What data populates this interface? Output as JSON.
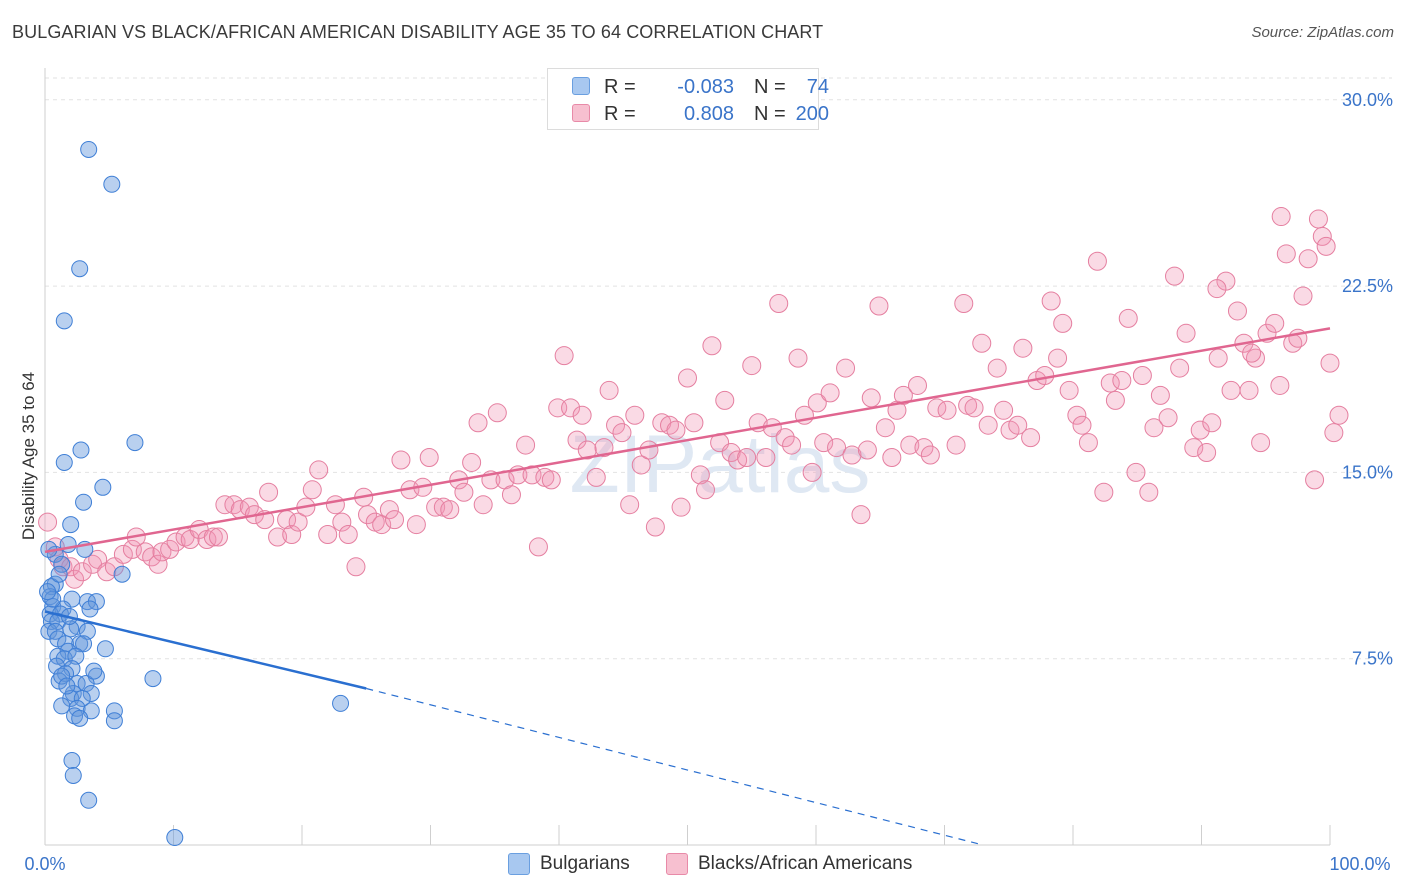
{
  "title": "BULGARIAN VS BLACK/AFRICAN AMERICAN DISABILITY AGE 35 TO 64 CORRELATION CHART",
  "source": "Source: ZipAtlas.com",
  "watermark": "ZIPatlas",
  "legend_top": [
    {
      "r_label": "R =",
      "r_value": "-0.083",
      "n_label": "N =",
      "n_value": "74",
      "color": "#a8c8f0",
      "border": "#6a9fe0"
    },
    {
      "r_label": "R =",
      "r_value": "0.808",
      "n_label": "N =",
      "n_value": "200",
      "color": "#f7c0d0",
      "border": "#e88aa8"
    }
  ],
  "legend_bottom": [
    {
      "label": "Bulgarians",
      "color": "#a8c8f0",
      "border": "#6a9fe0"
    },
    {
      "label": "Blacks/African Americans",
      "color": "#f7c0d0",
      "border": "#e88aa8"
    }
  ],
  "colors": {
    "blue_fill": "rgba(100,150,220,0.45)",
    "blue_stroke": "#3f7fd6",
    "blue_line": "#2a6fd0",
    "pink_fill": "rgba(240,150,180,0.35)",
    "pink_stroke": "#e57fa0",
    "pink_line": "#e06690",
    "tick_label": "#3a74c9",
    "grid": "#e2e2e2"
  },
  "chart_data": {
    "type": "scatter",
    "title": "BULGARIAN VS BLACK/AFRICAN AMERICAN DISABILITY AGE 35 TO 64 CORRELATION CHART",
    "xlabel": "",
    "ylabel": "Disability Age 35 to 64",
    "xlim": [
      0,
      100
    ],
    "ylim": [
      0,
      31.2
    ],
    "x_tick_labels": [
      "0.0%",
      "100.0%"
    ],
    "y_ticks": [
      7.5,
      15.0,
      22.5,
      30.0
    ],
    "y_tick_labels": [
      "7.5%",
      "15.0%",
      "22.5%",
      "30.0%"
    ],
    "grid": true,
    "legend_position": "top-center",
    "series": [
      {
        "name": "Bulgarians",
        "trend": {
          "x0": 0,
          "y0": 9.4,
          "x1": 25,
          "y1": 6.3,
          "dashed_to_x": 73,
          "dashed_to_y": 0.0
        },
        "points": [
          [
            3.4,
            28.0
          ],
          [
            5.2,
            26.6
          ],
          [
            2.7,
            23.2
          ],
          [
            1.5,
            21.1
          ],
          [
            2.8,
            15.9
          ],
          [
            1.5,
            15.4
          ],
          [
            4.5,
            14.4
          ],
          [
            3.0,
            13.8
          ],
          [
            7.0,
            16.2
          ],
          [
            2.0,
            12.9
          ],
          [
            1.8,
            12.1
          ],
          [
            3.1,
            11.9
          ],
          [
            0.8,
            11.7
          ],
          [
            1.3,
            11.3
          ],
          [
            6.0,
            10.9
          ],
          [
            0.8,
            10.5
          ],
          [
            0.5,
            10.4
          ],
          [
            0.4,
            10.0
          ],
          [
            2.1,
            9.9
          ],
          [
            3.3,
            9.8
          ],
          [
            4.0,
            9.8
          ],
          [
            0.6,
            9.6
          ],
          [
            1.4,
            9.5
          ],
          [
            3.5,
            9.5
          ],
          [
            0.4,
            9.3
          ],
          [
            1.2,
            9.3
          ],
          [
            0.5,
            9.0
          ],
          [
            1.0,
            9.0
          ],
          [
            2.5,
            8.8
          ],
          [
            0.3,
            8.6
          ],
          [
            0.8,
            8.6
          ],
          [
            2.0,
            8.7
          ],
          [
            3.3,
            8.6
          ],
          [
            1.0,
            8.3
          ],
          [
            1.6,
            8.1
          ],
          [
            2.7,
            8.1
          ],
          [
            3.0,
            8.1
          ],
          [
            4.7,
            7.9
          ],
          [
            1.8,
            7.8
          ],
          [
            1.0,
            7.6
          ],
          [
            1.5,
            7.5
          ],
          [
            2.4,
            7.6
          ],
          [
            0.9,
            7.2
          ],
          [
            2.1,
            7.1
          ],
          [
            1.6,
            6.9
          ],
          [
            4.0,
            6.8
          ],
          [
            1.1,
            6.6
          ],
          [
            2.5,
            6.5
          ],
          [
            3.2,
            6.5
          ],
          [
            2.2,
            6.1
          ],
          [
            3.6,
            6.1
          ],
          [
            2.0,
            5.9
          ],
          [
            2.9,
            5.9
          ],
          [
            1.3,
            5.6
          ],
          [
            2.5,
            5.5
          ],
          [
            3.6,
            5.4
          ],
          [
            5.4,
            5.4
          ],
          [
            2.3,
            5.2
          ],
          [
            2.7,
            5.1
          ],
          [
            5.4,
            5.0
          ],
          [
            8.4,
            6.7
          ],
          [
            23.0,
            5.7
          ],
          [
            2.1,
            3.4
          ],
          [
            2.2,
            2.8
          ],
          [
            3.4,
            1.8
          ],
          [
            10.1,
            0.3
          ],
          [
            0.3,
            11.9
          ],
          [
            1.1,
            10.9
          ],
          [
            1.9,
            9.2
          ],
          [
            0.6,
            9.9
          ],
          [
            1.3,
            6.8
          ],
          [
            0.2,
            10.2
          ],
          [
            3.8,
            7.0
          ],
          [
            1.7,
            6.4
          ]
        ]
      },
      {
        "name": "Blacks/African Americans",
        "trend": {
          "x0": 0,
          "y0": 11.8,
          "x1": 100,
          "y1": 20.8
        },
        "points": [
          [
            0.2,
            13.0
          ],
          [
            0.8,
            12.0
          ],
          [
            1.1,
            11.5
          ],
          [
            1.4,
            11.2
          ],
          [
            2.0,
            11.2
          ],
          [
            2.3,
            10.7
          ],
          [
            2.9,
            11.0
          ],
          [
            3.7,
            11.3
          ],
          [
            4.1,
            11.5
          ],
          [
            4.8,
            11.0
          ],
          [
            5.4,
            11.2
          ],
          [
            6.1,
            11.7
          ],
          [
            6.8,
            11.9
          ],
          [
            7.1,
            12.4
          ],
          [
            7.8,
            11.8
          ],
          [
            8.3,
            11.6
          ],
          [
            8.8,
            11.3
          ],
          [
            9.1,
            11.8
          ],
          [
            9.7,
            11.9
          ],
          [
            10.2,
            12.2
          ],
          [
            10.9,
            12.4
          ],
          [
            11.3,
            12.3
          ],
          [
            12.0,
            12.7
          ],
          [
            12.6,
            12.3
          ],
          [
            13.1,
            12.4
          ],
          [
            13.5,
            12.4
          ],
          [
            14.0,
            13.7
          ],
          [
            14.7,
            13.7
          ],
          [
            15.2,
            13.5
          ],
          [
            15.9,
            13.6
          ],
          [
            16.3,
            13.3
          ],
          [
            17.1,
            13.1
          ],
          [
            17.4,
            14.2
          ],
          [
            18.1,
            12.4
          ],
          [
            18.8,
            13.1
          ],
          [
            19.2,
            12.5
          ],
          [
            19.7,
            13.0
          ],
          [
            20.3,
            13.6
          ],
          [
            20.8,
            14.3
          ],
          [
            21.3,
            15.1
          ],
          [
            22.0,
            12.5
          ],
          [
            22.6,
            13.7
          ],
          [
            23.1,
            13.0
          ],
          [
            23.6,
            12.5
          ],
          [
            24.2,
            11.2
          ],
          [
            24.8,
            14.0
          ],
          [
            25.1,
            13.3
          ],
          [
            25.7,
            13.0
          ],
          [
            26.2,
            12.9
          ],
          [
            26.8,
            13.5
          ],
          [
            27.2,
            13.1
          ],
          [
            27.7,
            15.5
          ],
          [
            28.4,
            14.3
          ],
          [
            28.9,
            12.9
          ],
          [
            29.4,
            14.4
          ],
          [
            29.9,
            15.6
          ],
          [
            30.4,
            13.6
          ],
          [
            31.0,
            13.6
          ],
          [
            31.5,
            13.5
          ],
          [
            32.2,
            14.7
          ],
          [
            32.6,
            14.2
          ],
          [
            33.2,
            15.4
          ],
          [
            33.7,
            17.0
          ],
          [
            34.1,
            13.7
          ],
          [
            34.7,
            14.7
          ],
          [
            35.2,
            17.4
          ],
          [
            35.8,
            14.7
          ],
          [
            36.3,
            14.1
          ],
          [
            36.8,
            14.9
          ],
          [
            37.4,
            16.1
          ],
          [
            37.9,
            14.9
          ],
          [
            38.4,
            12.0
          ],
          [
            38.9,
            14.8
          ],
          [
            39.4,
            14.7
          ],
          [
            39.9,
            17.6
          ],
          [
            40.4,
            19.7
          ],
          [
            40.9,
            17.6
          ],
          [
            41.4,
            16.3
          ],
          [
            41.8,
            17.3
          ],
          [
            42.2,
            15.9
          ],
          [
            42.9,
            14.8
          ],
          [
            43.5,
            16.0
          ],
          [
            43.9,
            18.3
          ],
          [
            44.4,
            16.9
          ],
          [
            44.9,
            16.6
          ],
          [
            45.5,
            13.7
          ],
          [
            45.9,
            17.3
          ],
          [
            46.4,
            15.3
          ],
          [
            47.0,
            15.9
          ],
          [
            47.5,
            12.8
          ],
          [
            48.0,
            17.0
          ],
          [
            48.6,
            16.9
          ],
          [
            49.1,
            16.7
          ],
          [
            49.5,
            13.6
          ],
          [
            50.0,
            18.8
          ],
          [
            50.5,
            17.0
          ],
          [
            51.0,
            14.9
          ],
          [
            51.4,
            14.3
          ],
          [
            51.9,
            20.1
          ],
          [
            52.5,
            16.2
          ],
          [
            52.9,
            17.9
          ],
          [
            53.4,
            15.8
          ],
          [
            53.9,
            15.5
          ],
          [
            54.6,
            15.6
          ],
          [
            55.0,
            19.3
          ],
          [
            55.5,
            17.0
          ],
          [
            56.1,
            15.6
          ],
          [
            56.6,
            16.8
          ],
          [
            57.1,
            21.8
          ],
          [
            57.6,
            16.4
          ],
          [
            58.1,
            16.1
          ],
          [
            58.6,
            19.6
          ],
          [
            59.1,
            17.3
          ],
          [
            59.7,
            15.0
          ],
          [
            60.1,
            17.8
          ],
          [
            60.6,
            16.2
          ],
          [
            61.1,
            18.2
          ],
          [
            61.6,
            16.0
          ],
          [
            62.3,
            19.2
          ],
          [
            62.8,
            15.7
          ],
          [
            63.5,
            13.3
          ],
          [
            64.0,
            15.9
          ],
          [
            64.3,
            18.0
          ],
          [
            64.9,
            21.7
          ],
          [
            65.4,
            16.8
          ],
          [
            65.9,
            15.6
          ],
          [
            66.3,
            17.5
          ],
          [
            66.8,
            18.1
          ],
          [
            67.3,
            16.1
          ],
          [
            67.9,
            18.5
          ],
          [
            68.4,
            16.0
          ],
          [
            68.9,
            15.7
          ],
          [
            69.4,
            17.6
          ],
          [
            70.2,
            17.5
          ],
          [
            70.9,
            16.1
          ],
          [
            71.5,
            21.8
          ],
          [
            71.8,
            17.7
          ],
          [
            72.3,
            17.6
          ],
          [
            72.9,
            20.2
          ],
          [
            73.4,
            16.9
          ],
          [
            74.1,
            19.2
          ],
          [
            74.6,
            17.5
          ],
          [
            75.1,
            16.7
          ],
          [
            75.7,
            16.9
          ],
          [
            76.1,
            20.0
          ],
          [
            76.7,
            16.4
          ],
          [
            77.2,
            18.7
          ],
          [
            77.8,
            18.9
          ],
          [
            78.3,
            21.9
          ],
          [
            78.8,
            19.6
          ],
          [
            79.2,
            21.0
          ],
          [
            79.7,
            18.3
          ],
          [
            80.3,
            17.3
          ],
          [
            80.7,
            16.9
          ],
          [
            81.2,
            16.2
          ],
          [
            81.9,
            23.5
          ],
          [
            82.4,
            14.2
          ],
          [
            82.9,
            18.6
          ],
          [
            83.3,
            17.9
          ],
          [
            83.8,
            18.7
          ],
          [
            84.3,
            21.2
          ],
          [
            84.9,
            15.0
          ],
          [
            85.4,
            18.9
          ],
          [
            85.9,
            14.2
          ],
          [
            86.3,
            16.8
          ],
          [
            86.8,
            18.1
          ],
          [
            87.4,
            17.2
          ],
          [
            87.9,
            22.9
          ],
          [
            88.3,
            19.2
          ],
          [
            88.8,
            20.6
          ],
          [
            89.4,
            16.0
          ],
          [
            89.9,
            16.7
          ],
          [
            90.4,
            15.8
          ],
          [
            90.8,
            17.0
          ],
          [
            91.3,
            19.6
          ],
          [
            91.9,
            22.7
          ],
          [
            92.3,
            18.3
          ],
          [
            92.8,
            21.5
          ],
          [
            93.3,
            20.2
          ],
          [
            93.7,
            18.3
          ],
          [
            94.2,
            19.6
          ],
          [
            94.6,
            16.2
          ],
          [
            95.1,
            20.6
          ],
          [
            95.7,
            21.0
          ],
          [
            96.2,
            25.3
          ],
          [
            96.6,
            23.8
          ],
          [
            97.1,
            20.2
          ],
          [
            97.5,
            20.4
          ],
          [
            97.9,
            22.1
          ],
          [
            98.3,
            23.6
          ],
          [
            98.8,
            14.7
          ],
          [
            99.1,
            25.2
          ],
          [
            99.4,
            24.5
          ],
          [
            99.7,
            24.1
          ],
          [
            100.0,
            19.4
          ],
          [
            100.3,
            16.6
          ],
          [
            100.7,
            17.3
          ],
          [
            96.1,
            18.5
          ],
          [
            93.9,
            19.8
          ],
          [
            91.2,
            22.4
          ]
        ]
      }
    ]
  }
}
